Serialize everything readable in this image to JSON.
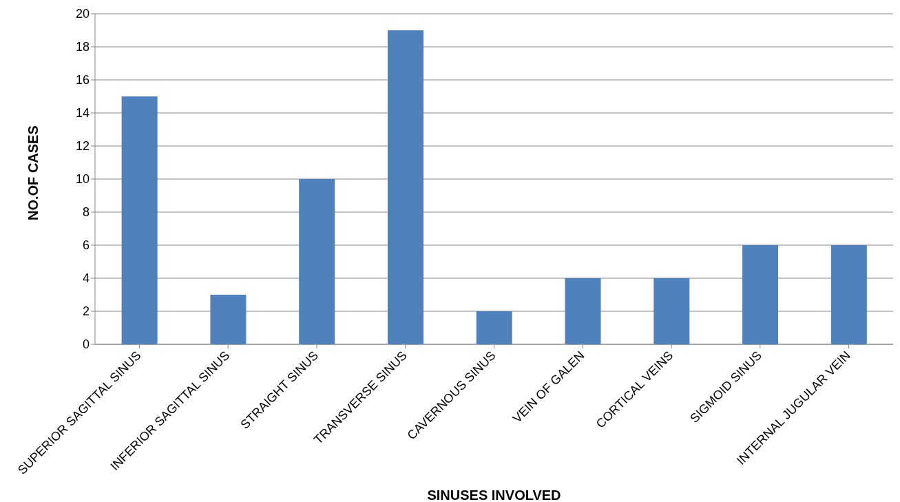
{
  "chart_data": {
    "type": "bar",
    "xlabel": "SINUSES  INVOLVED",
    "ylabel": "NO.OF CASES",
    "categories": [
      "SUPERIOR SAGITTAL SINUS",
      "INFERIOR SAGITTAL SINUS",
      "STRAIGHT SINUS",
      "TRANSVERSE SINUS",
      "CAVERNOUS SINUS",
      "VEIN OF GALEN",
      "CORTICAL VEINS",
      "SIGMOID SINUS",
      "INTERNAL JUGULAR VEIN"
    ],
    "values": [
      15,
      3,
      10,
      19,
      2,
      4,
      4,
      6,
      6
    ],
    "color": "#4f81bd",
    "ylim": [
      0,
      20
    ],
    "yticks": [
      0,
      2,
      4,
      6,
      8,
      10,
      12,
      14,
      16,
      18,
      20
    ],
    "grid": "y",
    "legend": false
  }
}
